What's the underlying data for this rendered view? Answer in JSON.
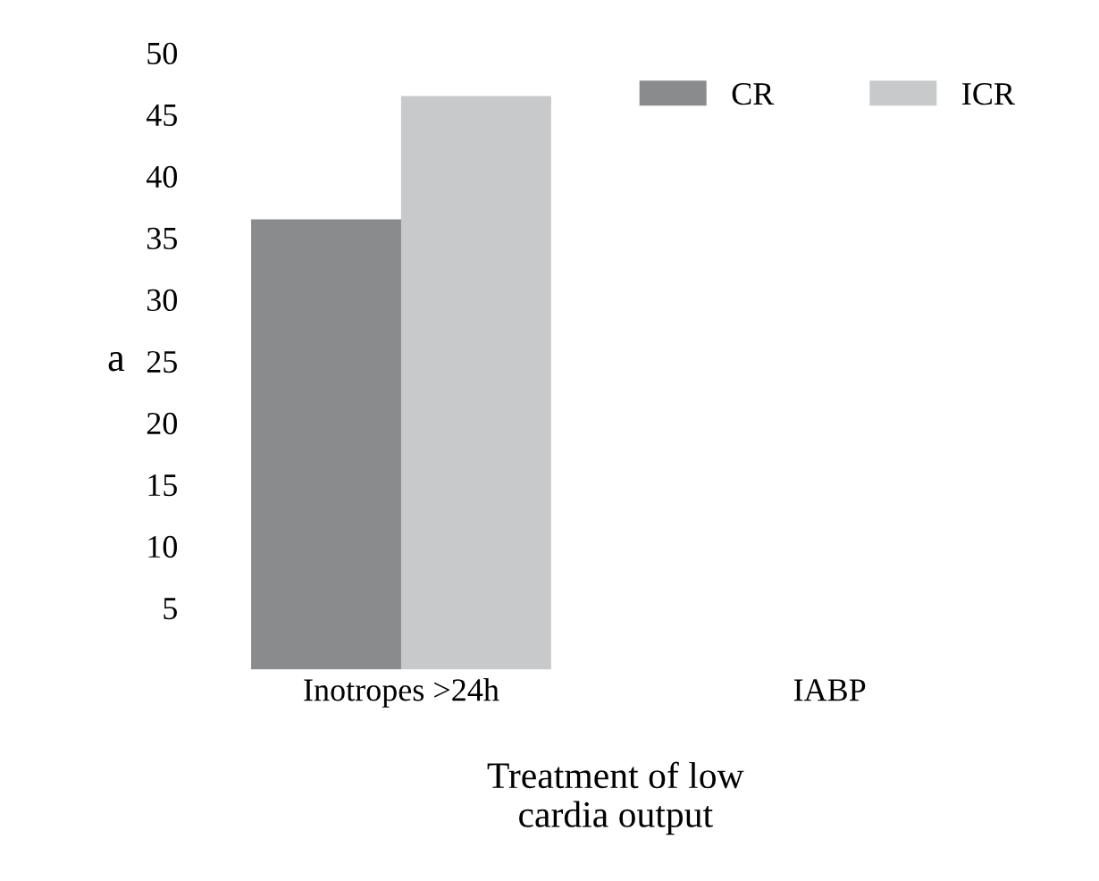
{
  "chart_data": {
    "type": "bar",
    "categories": [
      "Inotropes >24h",
      "IABP"
    ],
    "series": [
      {
        "name": "CR",
        "color": "#8a8b8d",
        "values": [
          36.5,
          null
        ]
      },
      {
        "name": "ICR",
        "color": "#c8c9cb",
        "values": [
          46.5,
          null
        ]
      }
    ],
    "ylabel": "a",
    "xlabel": "Treatment of low\ncardia output",
    "ylim": [
      0,
      50
    ],
    "yticks": [
      5,
      10,
      15,
      20,
      25,
      30,
      35,
      40,
      45,
      50
    ],
    "grid": false,
    "legend": "top right"
  }
}
